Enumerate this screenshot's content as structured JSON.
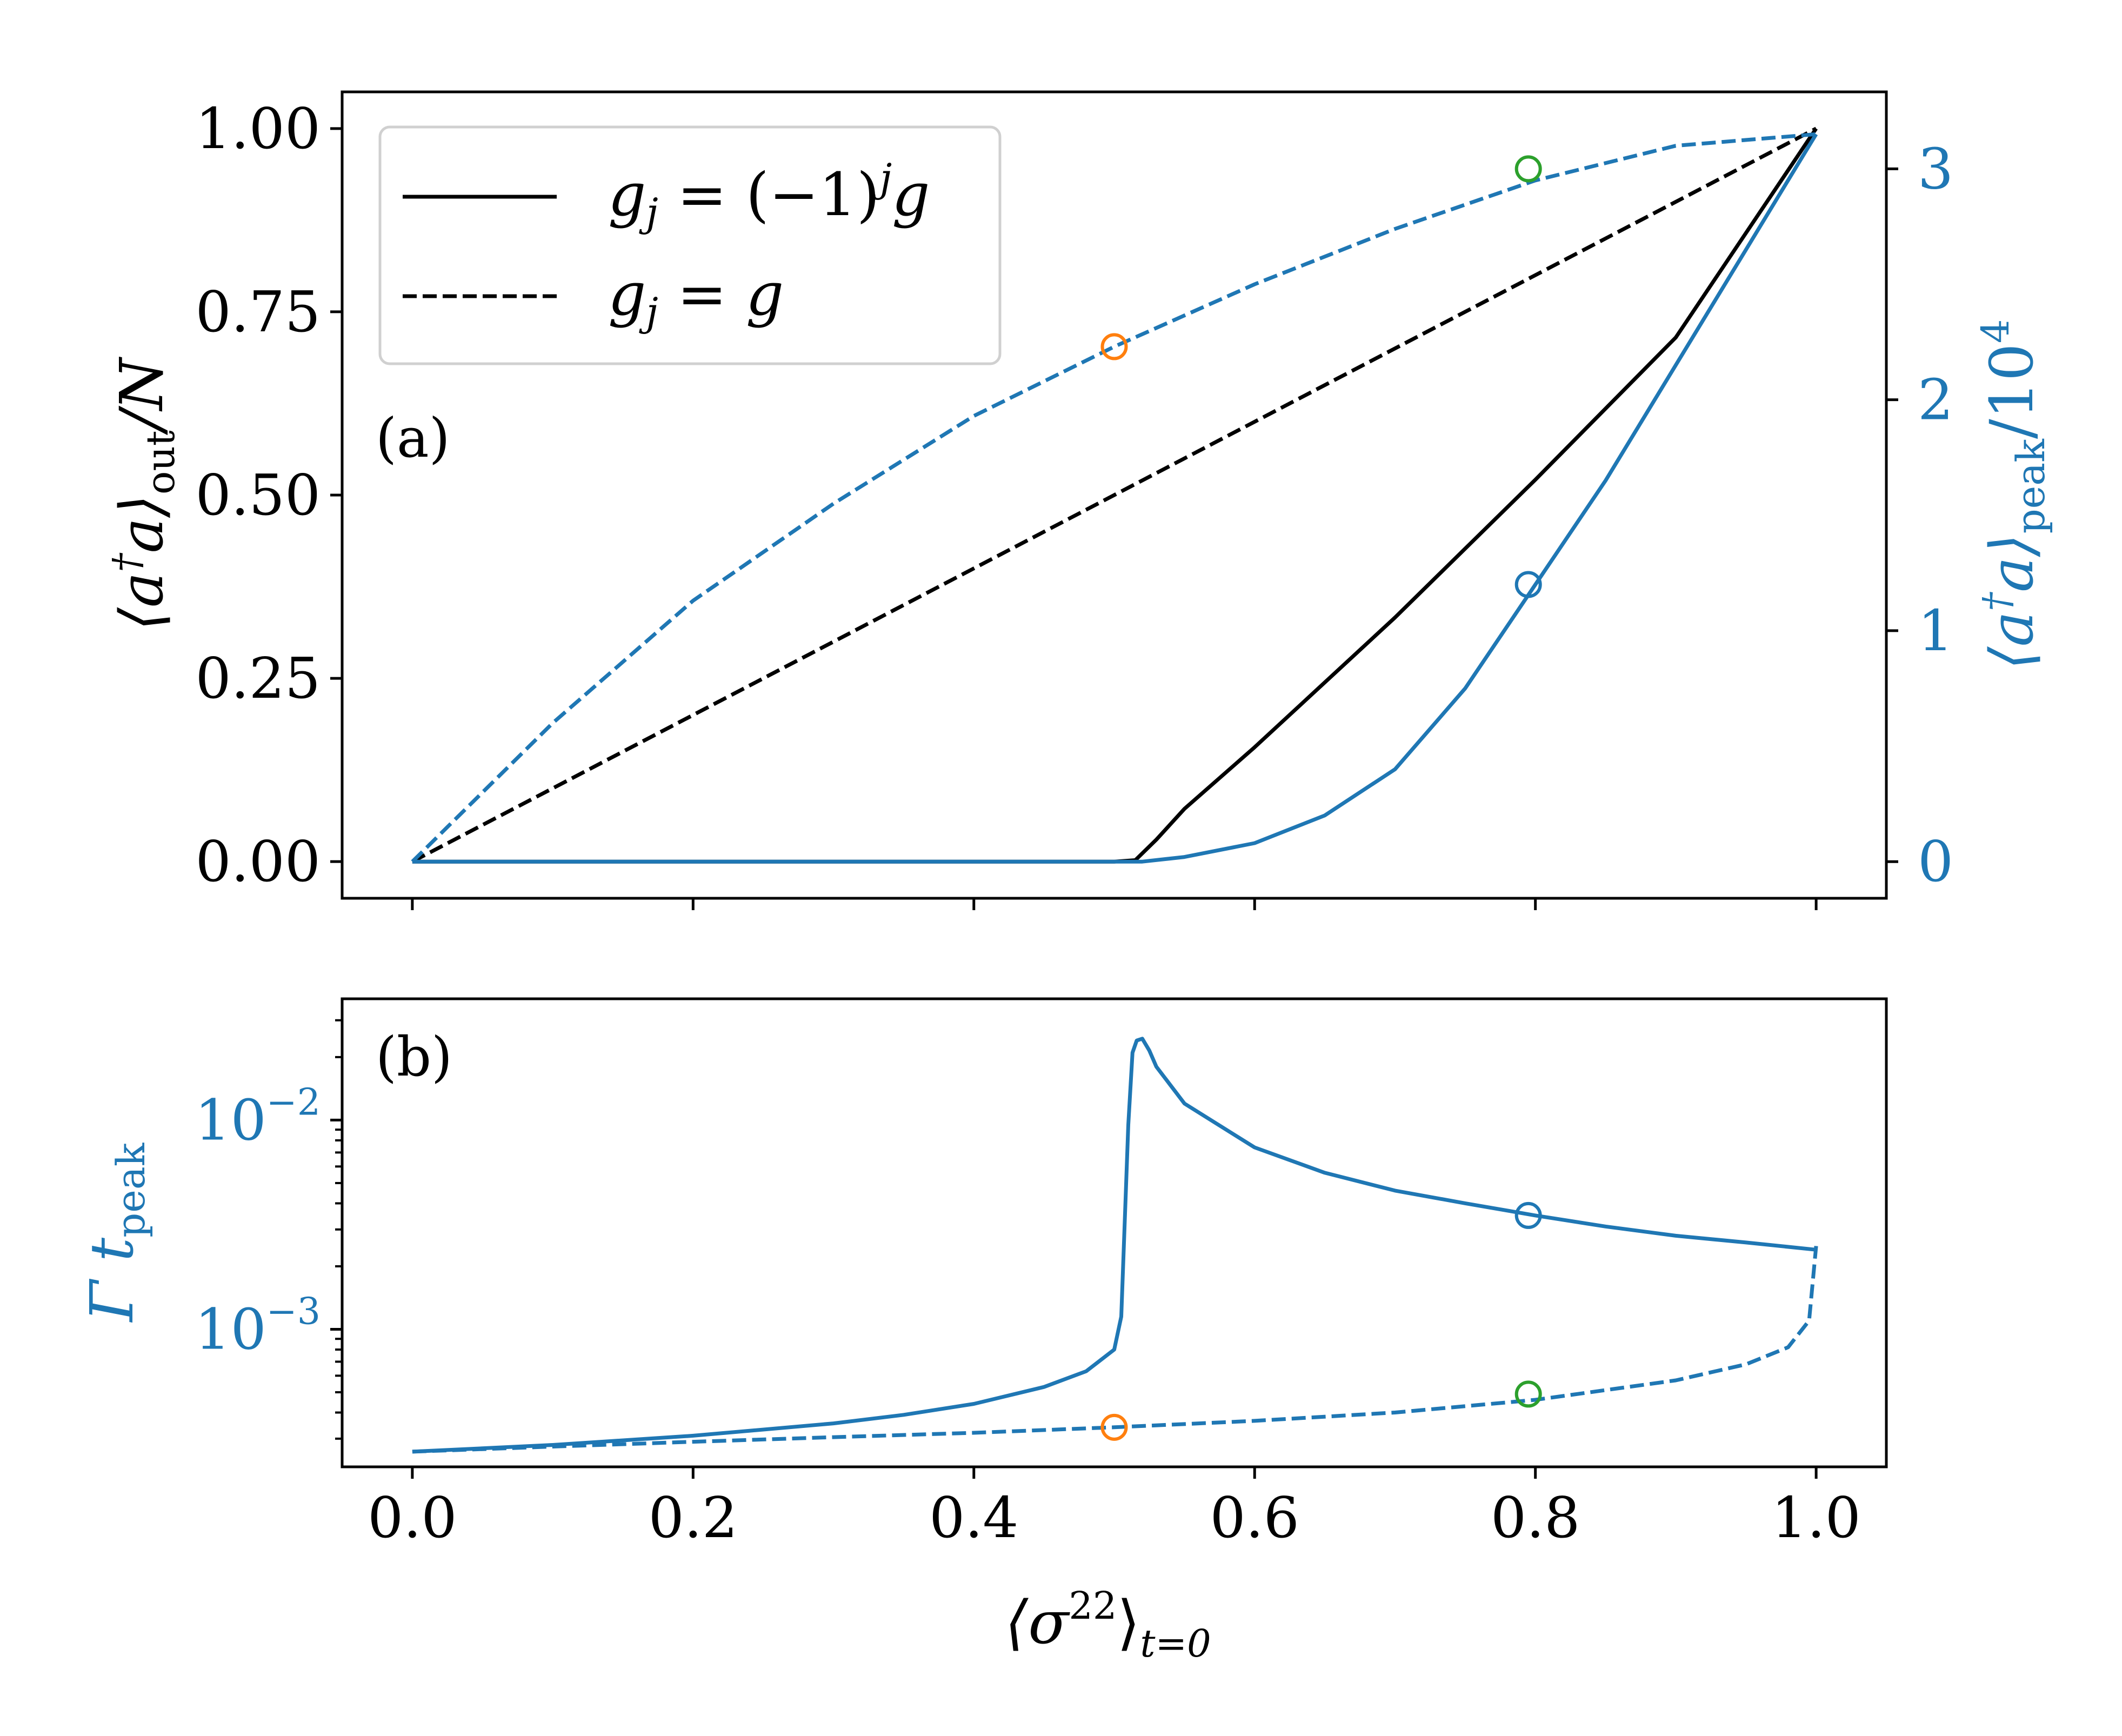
{
  "chart_data": [
    {
      "panel": "a",
      "type": "line",
      "panel_label": "(a)",
      "xlim": [
        -0.05,
        1.05
      ],
      "ylim": [
        -0.05,
        1.05
      ],
      "y2lim": [
        -0.1587,
        3.3333
      ],
      "xticks": [
        0.0,
        0.2,
        0.4,
        0.6,
        0.8,
        1.0
      ],
      "yticks": [
        0.0,
        0.25,
        0.5,
        0.75,
        1.0
      ],
      "ytick_labels": [
        "0.00",
        "0.25",
        "0.50",
        "0.75",
        "1.00"
      ],
      "y2ticks": [
        0,
        1,
        2,
        3
      ],
      "y2tick_labels": [
        "0",
        "1",
        "2",
        "3"
      ],
      "ylabel": {
        "open": "⟨a",
        "dagger": "†",
        "mid": "a⟩",
        "sub": "out",
        "tail": "/N"
      },
      "y2label": {
        "open": "⟨a",
        "dagger": "†",
        "mid": "a⟩",
        "sub": "peak",
        "tail": "/10",
        "sup": "4"
      },
      "legend": [
        {
          "style": "solid",
          "label_main": "g",
          "label_sub": "j",
          "label_rest": " = (−1)",
          "label_sup": "j",
          "label_end": "g"
        },
        {
          "style": "dashed",
          "label_main": "g",
          "label_sub": "j",
          "label_rest": " = g",
          "label_sup": "",
          "label_end": ""
        }
      ],
      "series": [
        {
          "name": "out_alternating",
          "axis": "left",
          "color": "#000000",
          "style": "solid",
          "x": [
            0,
            0.1,
            0.2,
            0.3,
            0.4,
            0.5,
            0.515,
            0.53,
            0.55,
            0.6,
            0.7,
            0.8,
            0.9,
            1.0
          ],
          "y": [
            0,
            0,
            0,
            0,
            0,
            0,
            0.002,
            0.03,
            0.072,
            0.156,
            0.333,
            0.521,
            0.715,
            1.0
          ]
        },
        {
          "name": "out_uniform",
          "axis": "left",
          "color": "#000000",
          "style": "dashed",
          "x": [
            0,
            1.0
          ],
          "y": [
            0,
            1.0
          ]
        },
        {
          "name": "peak_alternating",
          "axis": "right",
          "color": "#1f77b4",
          "style": "solid",
          "x": [
            0,
            0.1,
            0.2,
            0.3,
            0.4,
            0.5,
            0.52,
            0.55,
            0.6,
            0.65,
            0.7,
            0.75,
            0.8,
            0.85,
            0.9,
            0.95,
            1.0
          ],
          "y": [
            0,
            0,
            0,
            0,
            0,
            0,
            0,
            0.02,
            0.08,
            0.2,
            0.4,
            0.75,
            1.2,
            1.65,
            2.15,
            2.65,
            3.15
          ]
        },
        {
          "name": "peak_uniform",
          "axis": "right",
          "color": "#1f77b4",
          "style": "dashed",
          "x": [
            0,
            0.1,
            0.2,
            0.3,
            0.4,
            0.5,
            0.6,
            0.7,
            0.8,
            0.9,
            1.0
          ],
          "y": [
            0,
            0.6,
            1.13,
            1.55,
            1.93,
            2.23,
            2.5,
            2.74,
            2.95,
            3.1,
            3.15
          ]
        }
      ],
      "markers": [
        {
          "x": 0.5,
          "y": 2.23,
          "axis": "right",
          "color": "#ff7f0e"
        },
        {
          "x": 0.795,
          "y": 3.0,
          "axis": "right",
          "color": "#2ca02c"
        },
        {
          "x": 0.795,
          "y": 1.2,
          "axis": "right",
          "color": "#1f77b4"
        }
      ]
    },
    {
      "panel": "b",
      "type": "line",
      "panel_label": "(b)",
      "yscale": "log",
      "xlim": [
        -0.05,
        1.05
      ],
      "ylim": [
        0.00022,
        0.038
      ],
      "xticks": [
        0.0,
        0.2,
        0.4,
        0.6,
        0.8,
        1.0
      ],
      "xtick_labels": [
        "0.0",
        "0.2",
        "0.4",
        "0.6",
        "0.8",
        "1.0"
      ],
      "yticks_major": [
        {
          "value": 0.01,
          "base": "10",
          "exp": "−2"
        },
        {
          "value": 0.001,
          "base": "10",
          "exp": "−3"
        }
      ],
      "yticks_minor": [
        0.0003,
        0.0004,
        0.0005,
        0.0006,
        0.0007,
        0.0008,
        0.0009,
        0.002,
        0.003,
        0.004,
        0.005,
        0.006,
        0.007,
        0.008,
        0.009,
        0.02,
        0.03
      ],
      "ylabel": {
        "main": "Γ t",
        "sub": "peak"
      },
      "xlabel": {
        "open": "⟨σ",
        "sup": "22",
        "close": "⟩",
        "sub": "t=0"
      },
      "series": [
        {
          "name": "tpeak_alternating",
          "color": "#1f77b4",
          "style": "solid",
          "x": [
            0.0,
            0.1,
            0.2,
            0.3,
            0.35,
            0.4,
            0.45,
            0.48,
            0.5,
            0.505,
            0.51,
            0.513,
            0.516,
            0.52,
            0.525,
            0.53,
            0.55,
            0.6,
            0.65,
            0.7,
            0.75,
            0.8,
            0.85,
            0.9,
            0.95,
            1.0
          ],
          "y": [
            0.00026,
            0.00028,
            0.00031,
            0.000355,
            0.00039,
            0.00044,
            0.00053,
            0.00063,
            0.0008,
            0.00115,
            0.0095,
            0.021,
            0.024,
            0.0245,
            0.0215,
            0.018,
            0.012,
            0.0074,
            0.0056,
            0.0046,
            0.004,
            0.0035,
            0.0031,
            0.0028,
            0.0026,
            0.0024
          ]
        },
        {
          "name": "tpeak_uniform",
          "color": "#1f77b4",
          "style": "dashed",
          "x": [
            0.0,
            0.1,
            0.2,
            0.3,
            0.4,
            0.5,
            0.6,
            0.7,
            0.8,
            0.9,
            0.95,
            0.98,
            0.995,
            1.0
          ],
          "y": [
            0.00026,
            0.000275,
            0.00029,
            0.000305,
            0.00032,
            0.00034,
            0.000365,
            0.0004,
            0.00046,
            0.00057,
            0.00068,
            0.00082,
            0.0011,
            0.0025
          ]
        }
      ],
      "markers": [
        {
          "x": 0.5,
          "y": 0.00034,
          "color": "#ff7f0e"
        },
        {
          "x": 0.795,
          "y": 0.00049,
          "color": "#2ca02c"
        },
        {
          "x": 0.795,
          "y": 0.0035,
          "color": "#1f77b4"
        }
      ]
    }
  ]
}
